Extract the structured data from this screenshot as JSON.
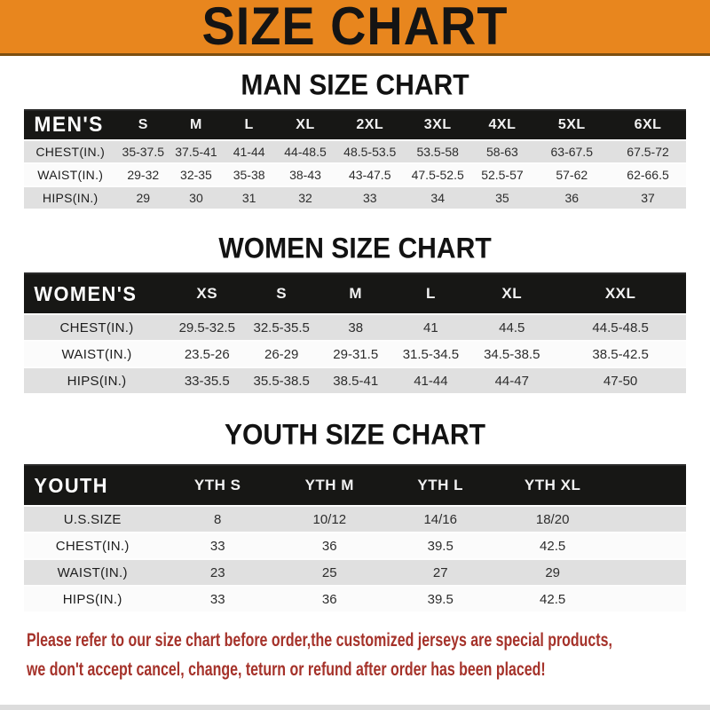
{
  "title": "SIZE CHART",
  "colors": {
    "banner_orange": "#E8861E",
    "bar_black": "#171715",
    "stripe_gray": "#E0E0E0",
    "note_red": "#A5322A"
  },
  "sections": [
    {
      "heading": "MAN SIZE CHART",
      "table": {
        "label": "MEN'S",
        "columns": [
          "S",
          "M",
          "L",
          "XL",
          "2XL",
          "3XL",
          "4XL",
          "5XL",
          "6XL"
        ],
        "rows": [
          {
            "label": "CHEST(IN.)",
            "values": [
              "35-37.5",
              "37.5-41",
              "41-44",
              "44-48.5",
              "48.5-53.5",
              "53.5-58",
              "58-63",
              "63-67.5",
              "67.5-72"
            ]
          },
          {
            "label": "WAIST(IN.)",
            "values": [
              "29-32",
              "32-35",
              "35-38",
              "38-43",
              "43-47.5",
              "47.5-52.5",
              "52.5-57",
              "57-62",
              "62-66.5"
            ]
          },
          {
            "label": "HIPS(IN.)",
            "values": [
              "29",
              "30",
              "31",
              "32",
              "33",
              "34",
              "35",
              "36",
              "37"
            ]
          }
        ]
      }
    },
    {
      "heading": "WOMEN SIZE CHART",
      "table": {
        "label": "WOMEN'S",
        "columns": [
          "XS",
          "S",
          "M",
          "L",
          "XL",
          "XXL"
        ],
        "rows": [
          {
            "label": "CHEST(IN.)",
            "values": [
              "29.5-32.5",
              "32.5-35.5",
              "38",
              "41",
              "44.5",
              "44.5-48.5"
            ]
          },
          {
            "label": "WAIST(IN.)",
            "values": [
              "23.5-26",
              "26-29",
              "29-31.5",
              "31.5-34.5",
              "34.5-38.5",
              "38.5-42.5"
            ]
          },
          {
            "label": "HIPS(IN.)",
            "values": [
              "33-35.5",
              "35.5-38.5",
              "38.5-41",
              "41-44",
              "44-47",
              "47-50"
            ]
          }
        ]
      }
    },
    {
      "heading": "YOUTH SIZE CHART",
      "table": {
        "label": "YOUTH",
        "columns": [
          "YTH S",
          "YTH M",
          "YTH L",
          "YTH XL"
        ],
        "rows": [
          {
            "label": "U.S.SIZE",
            "values": [
              "8",
              "10/12",
              "14/16",
              "18/20"
            ]
          },
          {
            "label": "CHEST(IN.)",
            "values": [
              "33",
              "36",
              "39.5",
              "42.5"
            ]
          },
          {
            "label": "WAIST(IN.)",
            "values": [
              "23",
              "25",
              "27",
              "29"
            ]
          },
          {
            "label": "HIPS(IN.)",
            "values": [
              "33",
              "36",
              "39.5",
              "42.5"
            ]
          }
        ]
      }
    }
  ],
  "note": {
    "line1": "Please refer to our size chart before order,the customized jerseys are special products,",
    "line2": "we don't accept cancel, change, teturn or refund after order has been placed!"
  }
}
